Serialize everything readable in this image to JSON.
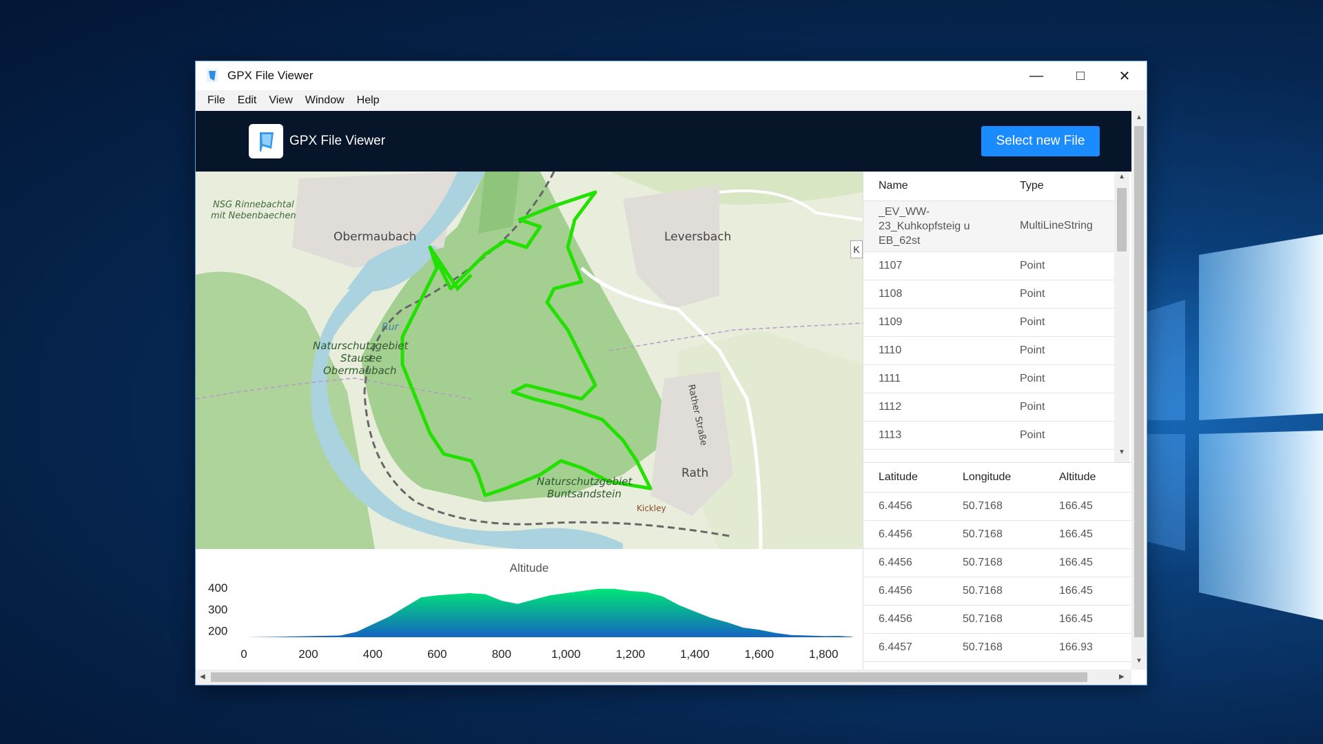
{
  "window": {
    "title": "GPX File Viewer"
  },
  "menu": [
    "File",
    "Edit",
    "View",
    "Window",
    "Help"
  ],
  "header": {
    "app_name": "GPX File Viewer",
    "select_button": "Select new File"
  },
  "map": {
    "labels": {
      "nsg": "NSG Rinnebachtal mit Nebenbaechen",
      "obermaubach": "Obermaubach",
      "leversbach": "Leversbach",
      "rur": "Rur",
      "nsg_stausee": "Naturschutzgebiet Stausee Obermaubach",
      "rather": "Rather Straße",
      "rath": "Rath",
      "buntsandstein": "Naturschutzgebiet Buntsandstein",
      "kickley": "Kickley",
      "tab_k": "K"
    },
    "colors": {
      "track": "#22e000",
      "forest": "#a9d59a",
      "water": "#aad3df"
    }
  },
  "tracks_table": {
    "headers": {
      "name": "Name",
      "type": "Type"
    },
    "rows": [
      {
        "name": "_EV_WW-23_Kuhkopfsteig u EB_62st",
        "type": "MultiLineString"
      },
      {
        "name": "1107",
        "type": "Point"
      },
      {
        "name": "1108",
        "type": "Point"
      },
      {
        "name": "1109",
        "type": "Point"
      },
      {
        "name": "1110",
        "type": "Point"
      },
      {
        "name": "1111",
        "type": "Point"
      },
      {
        "name": "1112",
        "type": "Point"
      },
      {
        "name": "1113",
        "type": "Point"
      }
    ]
  },
  "points_table": {
    "headers": {
      "lat": "Latitude",
      "lon": "Longitude",
      "alt": "Altitude"
    },
    "rows": [
      {
        "lat": "6.4456",
        "lon": "50.7168",
        "alt": "166.45"
      },
      {
        "lat": "6.4456",
        "lon": "50.7168",
        "alt": "166.45"
      },
      {
        "lat": "6.4456",
        "lon": "50.7168",
        "alt": "166.45"
      },
      {
        "lat": "6.4456",
        "lon": "50.7168",
        "alt": "166.45"
      },
      {
        "lat": "6.4456",
        "lon": "50.7168",
        "alt": "166.45"
      },
      {
        "lat": "6.4457",
        "lon": "50.7168",
        "alt": "166.93"
      }
    ]
  },
  "chart_data": {
    "type": "area",
    "title": "Altitude",
    "xlabel": "",
    "ylabel": "",
    "xlim": [
      0,
      1900
    ],
    "ylim": [
      170,
      420
    ],
    "x_ticks": [
      "0",
      "200",
      "400",
      "600",
      "800",
      "1,000",
      "1,200",
      "1,400",
      "1,600",
      "1,800"
    ],
    "y_ticks": [
      "400",
      "300",
      "200"
    ],
    "x": [
      0,
      100,
      200,
      300,
      350,
      400,
      450,
      500,
      550,
      600,
      650,
      700,
      750,
      800,
      850,
      900,
      950,
      1000,
      1050,
      1100,
      1150,
      1200,
      1250,
      1300,
      1350,
      1400,
      1450,
      1500,
      1550,
      1600,
      1650,
      1700,
      1750,
      1800,
      1850,
      1890
    ],
    "y": [
      170,
      172,
      175,
      178,
      195,
      230,
      265,
      310,
      355,
      365,
      370,
      375,
      370,
      340,
      325,
      345,
      365,
      375,
      385,
      395,
      395,
      385,
      380,
      360,
      320,
      290,
      260,
      240,
      215,
      205,
      190,
      180,
      178,
      175,
      176,
      172
    ],
    "colors": {
      "top": "#00e676",
      "bottom": "#1565c0"
    }
  }
}
